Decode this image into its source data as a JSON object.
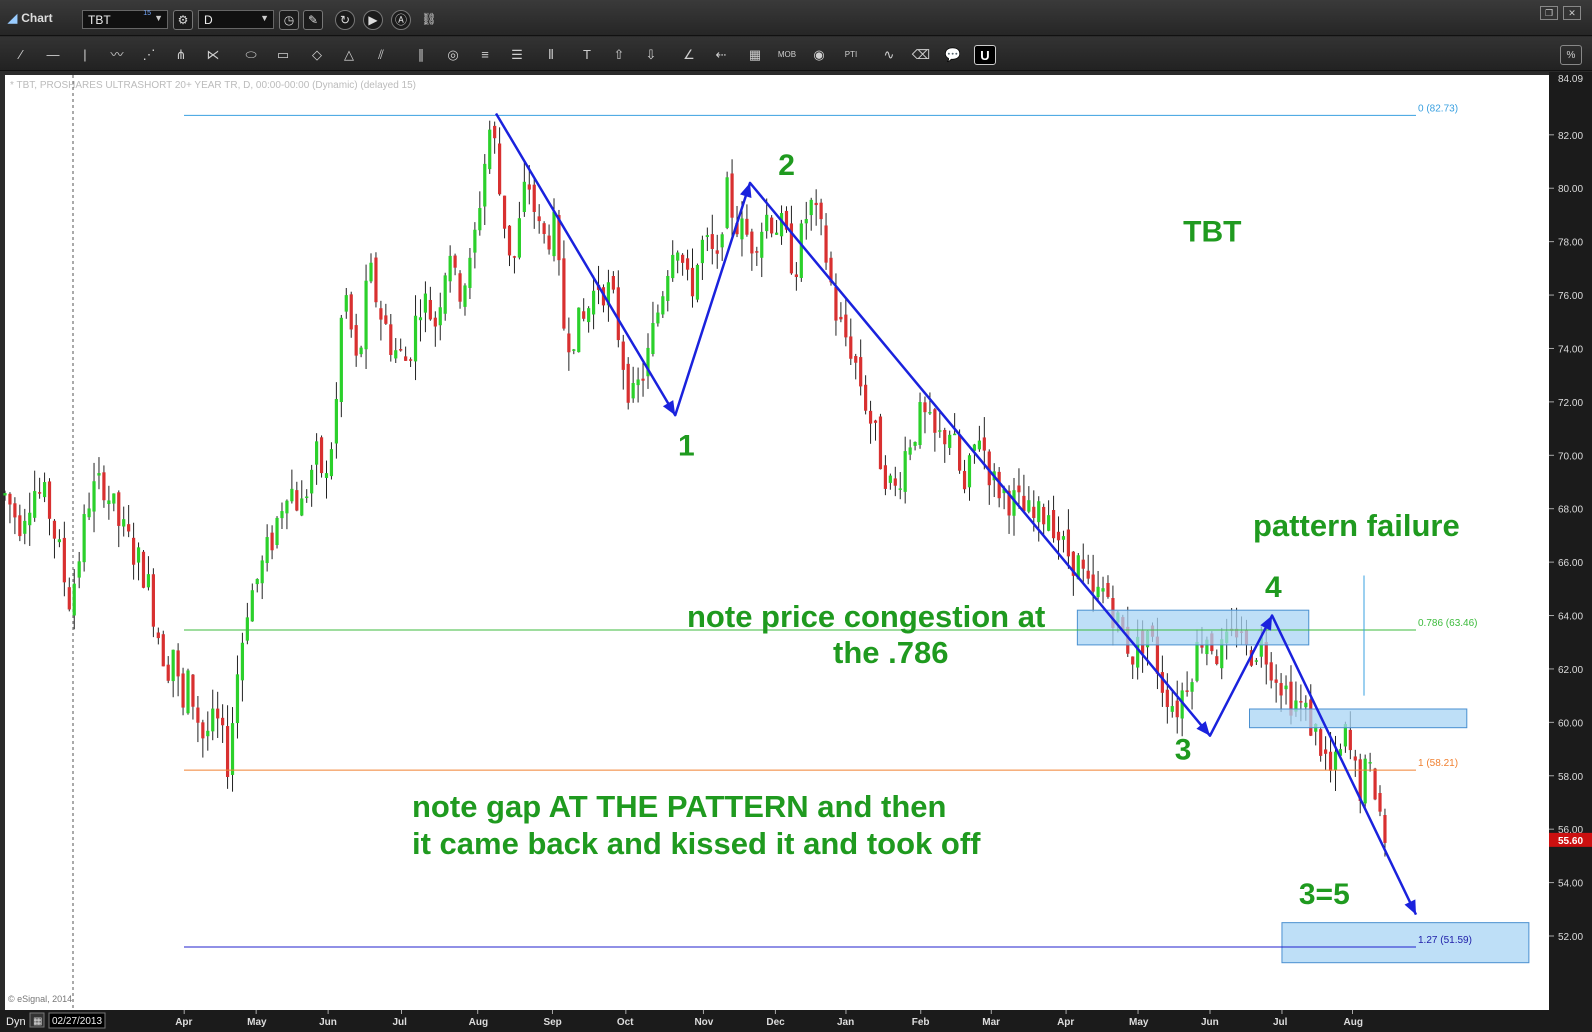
{
  "window": {
    "title": "Chart",
    "symbol": "TBT",
    "symbol_sup": "15",
    "interval": "D"
  },
  "toolbar": {
    "tools": [
      "line-tool-icon",
      "horizontal-line-icon",
      "vertical-line-icon",
      "pencil-wave-icon",
      "fib-fan-icon",
      "pitchfork-icon",
      "gann-fan-icon",
      "ellipse-icon",
      "rectangle-icon",
      "diamond-icon",
      "triangle-icon",
      "channel-icon",
      "parallel-lines-icon",
      "circle-target-icon",
      "fib-retrace-icon",
      "fib-extension-icon",
      "fib-time-icon",
      "text-icon",
      "arrow-up-icon",
      "arrow-down-icon",
      "angle-icon",
      "arrow-left-icon",
      "grid-icon",
      "mob-icon",
      "eye-icon",
      "pti-icon",
      "wave-icon",
      "eraser-icon",
      "chat-icon",
      "magnet-icon"
    ],
    "mob_label": "MOB",
    "pti_label": "PTI"
  },
  "header_text": "* TBT, PROSHARES ULTRASHORT 20+ YEAR TR, D, 00:00-00:00 (Dynamic) (delayed 15)",
  "watermark": "© eSignal, 2014",
  "status": {
    "mode": "Dyn",
    "date": "02/27/2013"
  },
  "colors": {
    "background": "#ffffff",
    "up_candle": "#2bd02b",
    "down_candle": "#d83030",
    "wave_line": "#1a22dd",
    "annotation": "#1f9a1f",
    "fib_zero": "#3aa0e0",
    "fib_786": "#3cbb3c",
    "fib_one": "#f08030",
    "fib_127": "#2020cc",
    "zone_fill": "#a8d4f4",
    "last_price_bg": "#cc1010"
  },
  "chart_data": {
    "type": "candlestick",
    "symbol": "TBT",
    "ylim": [
      50.5,
      84.09
    ],
    "y_ticks": [
      52,
      54,
      56,
      58,
      60,
      62,
      64,
      66,
      68,
      70,
      72,
      74,
      76,
      78,
      80,
      82
    ],
    "y_top_label": "84.09",
    "last_price": 55.6,
    "last_price_label": "55.60",
    "x_months": [
      {
        "label": "Apr",
        "t": 0.127
      },
      {
        "label": "May",
        "t": 0.178
      },
      {
        "label": "Jun",
        "t": 0.229
      },
      {
        "label": "Jul",
        "t": 0.281
      },
      {
        "label": "Aug",
        "t": 0.335
      },
      {
        "label": "Sep",
        "t": 0.388
      },
      {
        "label": "Oct",
        "t": 0.44
      },
      {
        "label": "Nov",
        "t": 0.495
      },
      {
        "label": "Dec",
        "t": 0.546
      },
      {
        "label": "Jan",
        "t": 0.596
      },
      {
        "label": "Feb",
        "t": 0.649
      },
      {
        "label": "Mar",
        "t": 0.699
      },
      {
        "label": "Apr",
        "t": 0.752
      },
      {
        "label": "May",
        "t": 0.803
      },
      {
        "label": "Jun",
        "t": 0.854
      },
      {
        "label": "Jul",
        "t": 0.905
      },
      {
        "label": "Aug",
        "t": 0.955
      }
    ],
    "price_path": [
      [
        0.0,
        68.5
      ],
      [
        0.01,
        67.5
      ],
      [
        0.02,
        68.8
      ],
      [
        0.03,
        68.2
      ],
      [
        0.04,
        66.0
      ],
      [
        0.045,
        64.5
      ],
      [
        0.05,
        65.5
      ],
      [
        0.06,
        68.5
      ],
      [
        0.07,
        69.0
      ],
      [
        0.08,
        67.5
      ],
      [
        0.09,
        66.5
      ],
      [
        0.1,
        65.5
      ],
      [
        0.108,
        63.5
      ],
      [
        0.115,
        62.0
      ],
      [
        0.12,
        63.0
      ],
      [
        0.125,
        60.0
      ],
      [
        0.13,
        61.5
      ],
      [
        0.14,
        59.5
      ],
      [
        0.15,
        60.0
      ],
      [
        0.158,
        58.5
      ],
      [
        0.165,
        62.0
      ],
      [
        0.172,
        64.5
      ],
      [
        0.18,
        65.5
      ],
      [
        0.19,
        67.0
      ],
      [
        0.2,
        69.0
      ],
      [
        0.21,
        68.0
      ],
      [
        0.22,
        70.0
      ],
      [
        0.228,
        69.0
      ],
      [
        0.235,
        72.0
      ],
      [
        0.24,
        76.5
      ],
      [
        0.25,
        73.0
      ],
      [
        0.258,
        77.0
      ],
      [
        0.265,
        75.5
      ],
      [
        0.275,
        74.0
      ],
      [
        0.285,
        73.5
      ],
      [
        0.295,
        76.0
      ],
      [
        0.305,
        75.0
      ],
      [
        0.315,
        78.0
      ],
      [
        0.32,
        76.0
      ],
      [
        0.33,
        77.0
      ],
      [
        0.34,
        81.0
      ],
      [
        0.345,
        82.7
      ],
      [
        0.35,
        80.0
      ],
      [
        0.36,
        77.0
      ],
      [
        0.37,
        80.5
      ],
      [
        0.38,
        78.0
      ],
      [
        0.39,
        78.5
      ],
      [
        0.395,
        75.0
      ],
      [
        0.4,
        74.5
      ],
      [
        0.41,
        75.0
      ],
      [
        0.42,
        76.5
      ],
      [
        0.43,
        76.0
      ],
      [
        0.44,
        73.0
      ],
      [
        0.445,
        72.0
      ],
      [
        0.455,
        73.5
      ],
      [
        0.465,
        76.0
      ],
      [
        0.475,
        78.5
      ],
      [
        0.485,
        76.0
      ],
      [
        0.495,
        78.0
      ],
      [
        0.505,
        77.0
      ],
      [
        0.51,
        80.0
      ],
      [
        0.52,
        78.5
      ],
      [
        0.53,
        78.0
      ],
      [
        0.54,
        79.0
      ],
      [
        0.55,
        78.5
      ],
      [
        0.56,
        77.0
      ],
      [
        0.57,
        79.5
      ],
      [
        0.58,
        78.0
      ],
      [
        0.59,
        75.0
      ],
      [
        0.6,
        74.0
      ],
      [
        0.61,
        72.0
      ],
      [
        0.62,
        70.0
      ],
      [
        0.63,
        68.5
      ],
      [
        0.64,
        70.5
      ],
      [
        0.65,
        71.5
      ],
      [
        0.66,
        70.5
      ],
      [
        0.67,
        71.0
      ],
      [
        0.68,
        68.5
      ],
      [
        0.69,
        71.0
      ],
      [
        0.7,
        69.0
      ],
      [
        0.71,
        68.5
      ],
      [
        0.72,
        68.0
      ],
      [
        0.73,
        67.5
      ],
      [
        0.74,
        68.0
      ],
      [
        0.75,
        66.5
      ],
      [
        0.76,
        66.0
      ],
      [
        0.77,
        64.5
      ],
      [
        0.78,
        65.0
      ],
      [
        0.79,
        63.5
      ],
      [
        0.8,
        62.5
      ],
      [
        0.81,
        63.5
      ],
      [
        0.82,
        61.5
      ],
      [
        0.83,
        60.5
      ],
      [
        0.84,
        62.0
      ],
      [
        0.85,
        63.5
      ],
      [
        0.86,
        62.5
      ],
      [
        0.87,
        63.0
      ],
      [
        0.875,
        64.0
      ],
      [
        0.88,
        62.5
      ],
      [
        0.89,
        63.0
      ],
      [
        0.9,
        62.0
      ],
      [
        0.91,
        61.0
      ],
      [
        0.92,
        60.5
      ],
      [
        0.93,
        59.5
      ],
      [
        0.94,
        58.0
      ],
      [
        0.945,
        58.5
      ],
      [
        0.95,
        59.5
      ],
      [
        0.955,
        58.5
      ],
      [
        0.96,
        57.5
      ],
      [
        0.965,
        58.2
      ],
      [
        0.97,
        57.8
      ],
      [
        0.975,
        56.5
      ],
      [
        0.978,
        55.6
      ]
    ],
    "fib_levels": [
      {
        "ratio": "0",
        "value": 82.73,
        "label": "0 (82.73)"
      },
      {
        "ratio": "0.786",
        "value": 63.46,
        "label": "0.786 (63.46)"
      },
      {
        "ratio": "1",
        "value": 58.21,
        "label": "1 (58.21)"
      },
      {
        "ratio": "1.27",
        "value": 51.59,
        "label": "1.27 (51.59)"
      }
    ],
    "wave_path": [
      [
        0.348,
        82.8
      ],
      [
        0.475,
        71.5
      ],
      [
        0.528,
        80.2
      ],
      [
        0.854,
        59.5
      ],
      [
        0.898,
        64.0
      ],
      [
        1.0,
        52.8
      ]
    ],
    "zones": [
      {
        "t0": 0.76,
        "t1": 0.924,
        "v0": 64.2,
        "v1": 62.9
      },
      {
        "t0": 0.882,
        "t1": 1.036,
        "v0": 60.5,
        "v1": 59.8
      },
      {
        "t0": 0.905,
        "t1": 1.08,
        "v0": 52.5,
        "v1": 51.0
      }
    ],
    "wave_labels": [
      {
        "text": "1",
        "t": 0.477,
        "v": 70.0
      },
      {
        "text": "2",
        "t": 0.548,
        "v": 80.5
      },
      {
        "text": "3",
        "t": 0.829,
        "v": 58.6
      },
      {
        "text": "4",
        "t": 0.893,
        "v": 64.7
      },
      {
        "text": "3=5",
        "t": 0.917,
        "v": 53.2
      },
      {
        "text": "TBT",
        "t": 0.835,
        "v": 78.0
      }
    ],
    "annotations": {
      "congestion_1": "note price congestion at",
      "congestion_2": "the .786",
      "gap_1": "note gap AT THE PATTERN and then",
      "gap_2": "it came back and kissed it and took off",
      "failure": "pattern failure"
    }
  }
}
